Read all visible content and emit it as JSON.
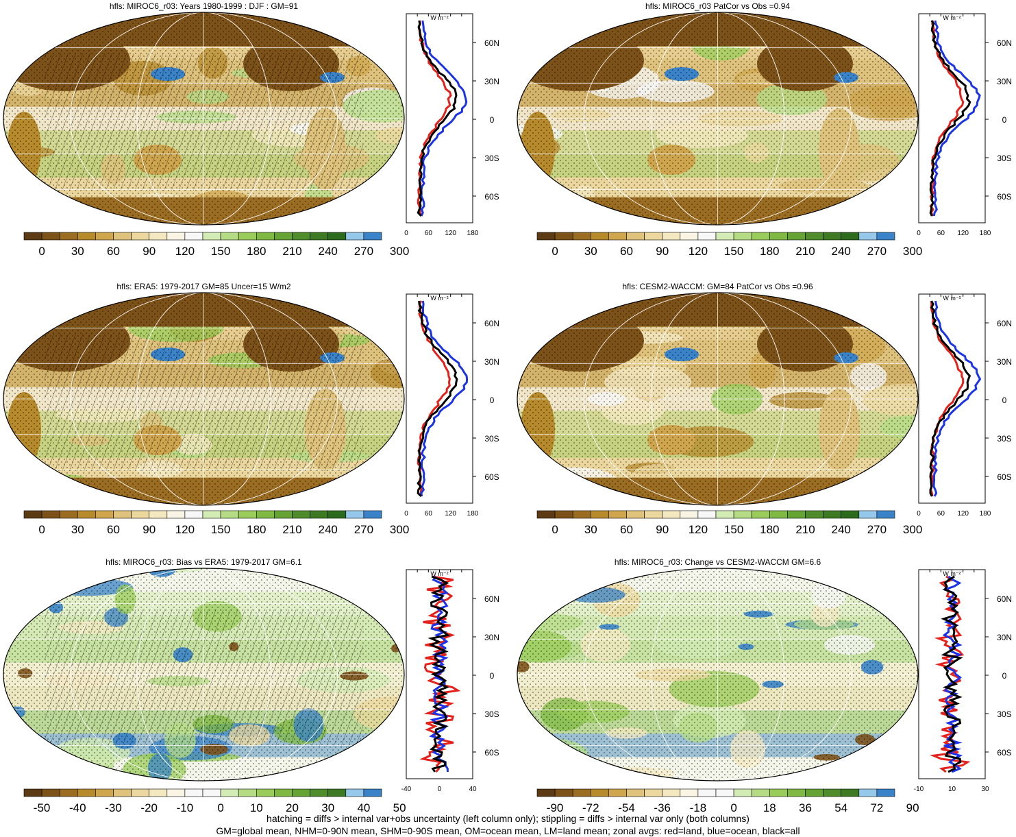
{
  "panels": [
    {
      "title": "hfls: MIROC6_r03: Years 1980-1999 : DJF : GM=91",
      "colorbar": {
        "labels": [
          "0",
          "30",
          "60",
          "90",
          "120",
          "150",
          "180",
          "210",
          "240",
          "270",
          "300"
        ]
      },
      "zonal": {
        "xticks": [
          "0",
          "60",
          "120",
          "180"
        ],
        "unit": "W m⁻²"
      }
    },
    {
      "title": "hfls: MIROC6_r03 PatCor vs Obs =0.94",
      "colorbar": {
        "labels": [
          "0",
          "30",
          "60",
          "90",
          "120",
          "150",
          "180",
          "210",
          "240",
          "270",
          "300"
        ]
      },
      "zonal": {
        "xticks": [
          "0",
          "60",
          "120",
          "180"
        ],
        "unit": "W m⁻²"
      }
    },
    {
      "title": "hfls: ERA5: 1979-2017 GM=85 Uncer=15 W/m2",
      "colorbar": {
        "labels": [
          "0",
          "30",
          "60",
          "90",
          "120",
          "150",
          "180",
          "210",
          "240",
          "270",
          "300"
        ]
      },
      "zonal": {
        "xticks": [
          "0",
          "60",
          "120",
          "180"
        ],
        "unit": "W m⁻²"
      }
    },
    {
      "title": "hfls: CESM2-WACCM: GM=84 PatCor vs Obs =0.96",
      "colorbar": {
        "labels": [
          "0",
          "30",
          "60",
          "90",
          "120",
          "150",
          "180",
          "210",
          "240",
          "270",
          "300"
        ]
      },
      "zonal": {
        "xticks": [
          "0",
          "60",
          "120",
          "180"
        ],
        "unit": "W m⁻²"
      }
    },
    {
      "title": "hfls: MIROC6_r03: Bias vs ERA5: 1979-2017 GM=6.1",
      "colorbar": {
        "labels": [
          "-50",
          "-40",
          "-30",
          "-20",
          "-10",
          "0",
          "10",
          "20",
          "30",
          "40",
          "50"
        ]
      },
      "zonal": {
        "xticks": [
          "-40",
          "0",
          "40"
        ],
        "unit": "W m⁻²"
      }
    },
    {
      "title": "hfls: MIROC6_r03: Change vs CESM2-WACCM GM=6.6",
      "colorbar": {
        "labels": [
          "-90",
          "-72",
          "-54",
          "-36",
          "-18",
          "0",
          "18",
          "36",
          "54",
          "72",
          "90"
        ]
      },
      "zonal": {
        "xticks": [
          "-10",
          "10",
          "30"
        ],
        "unit": "W m⁻²"
      }
    }
  ],
  "lat_labels": [
    "60N",
    "30N",
    "0",
    "30S",
    "60S"
  ],
  "colors": {
    "absolute_scale": [
      "#5c3a14",
      "#7d5219",
      "#9b6d22",
      "#b78a2c",
      "#cfa64e",
      "#dfc27b",
      "#ecd89e",
      "#f4e8c1",
      "#f9f4e4",
      "#f7f7f7",
      "#d3ebb4",
      "#b5dc85",
      "#99cc5a",
      "#7fb843",
      "#66a335",
      "#4f8c2b",
      "#3d7a23",
      "#2c6a1d",
      "#96c8ec",
      "#3a83c8"
    ],
    "diff_scale": [
      "#5c3a14",
      "#7d5219",
      "#9b6d22",
      "#b78a2c",
      "#cfa64e",
      "#dfc27b",
      "#ecd89e",
      "#f4e8c1",
      "#f9f4e4",
      "#f7f7f7",
      "#f7f7f7",
      "#d3ebb4",
      "#b5dc85",
      "#99cc5a",
      "#7fb843",
      "#66a335",
      "#4f8c2b",
      "#3d7a23",
      "#96c8ec",
      "#3a83c8"
    ],
    "land": "#e4221b",
    "ocean": "#1a33e8",
    "all": "#000000"
  },
  "footer": [
    "hatching = diffs > internal var+obs uncertainty (left column only); stippling = diffs > internal var only (both columns)",
    "GM=global mean, NHM=0-90N mean, SHM=0-90S mean, OM=ocean mean, LM=land mean; zonal avgs: red=land, blue=ocean, black=all"
  ]
}
